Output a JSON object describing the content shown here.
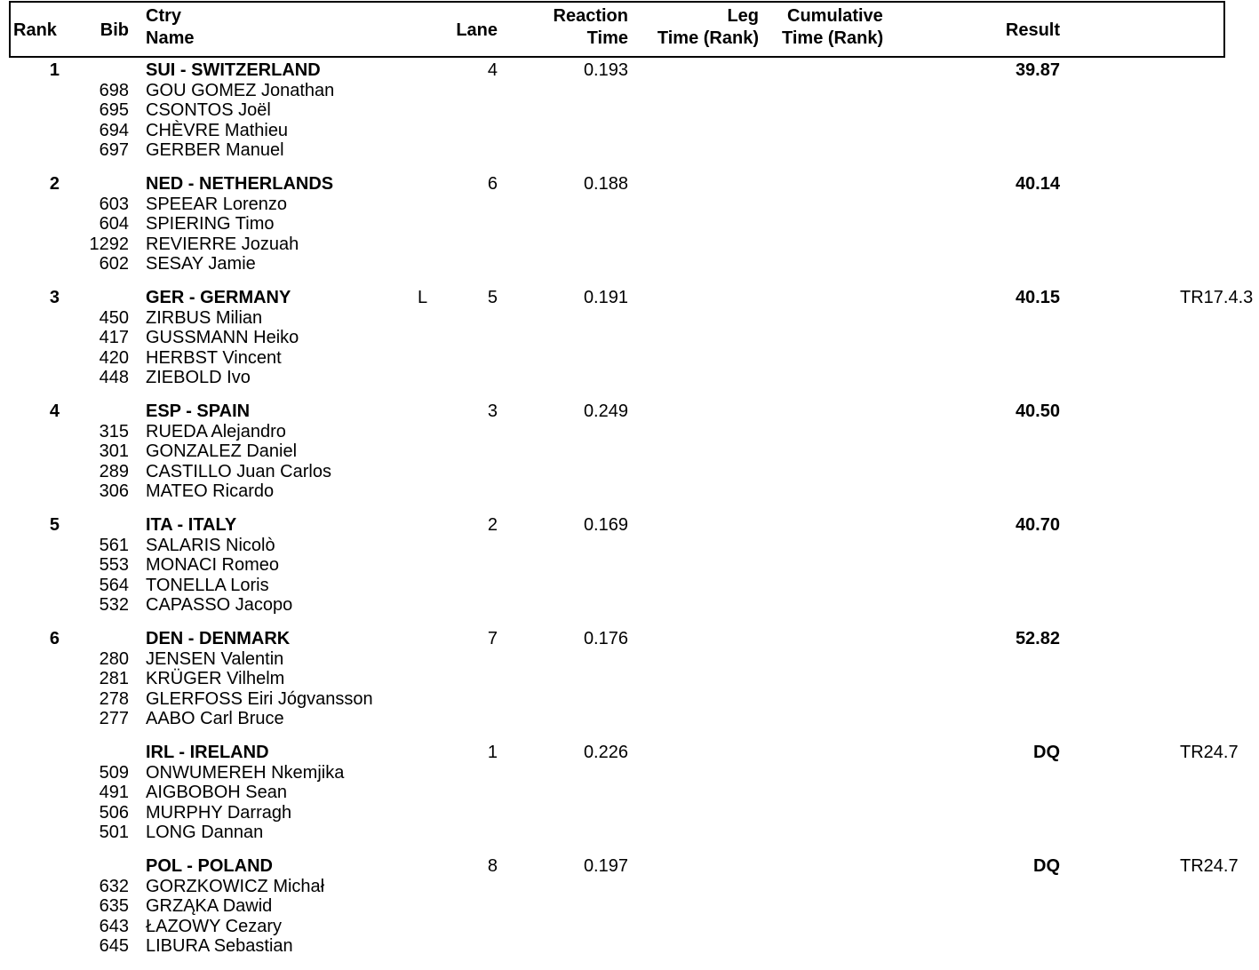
{
  "header": {
    "rank": "Rank",
    "bib": "Bib",
    "ctry": "Ctry",
    "name": "Name",
    "lane": "Lane",
    "reaction_1": "Reaction",
    "reaction_2": "Time",
    "leg_1": "Leg",
    "leg_2": "Time (Rank)",
    "cum_1": "Cumulative",
    "cum_2": "Time (Rank)",
    "result": "Result"
  },
  "teams": [
    {
      "rank": "1",
      "country": "SUI - SWITZERLAND",
      "flag": "",
      "lane": "4",
      "reaction": "0.193",
      "result": "39.87",
      "remark": "",
      "athletes": [
        {
          "bib": "698",
          "name": "GOU GOMEZ Jonathan"
        },
        {
          "bib": "695",
          "name": "CSONTOS Joël"
        },
        {
          "bib": "694",
          "name": "CHÈVRE Mathieu"
        },
        {
          "bib": "697",
          "name": "GERBER Manuel"
        }
      ]
    },
    {
      "rank": "2",
      "country": "NED - NETHERLANDS",
      "flag": "",
      "lane": "6",
      "reaction": "0.188",
      "result": "40.14",
      "remark": "",
      "athletes": [
        {
          "bib": "603",
          "name": "SPEEAR Lorenzo"
        },
        {
          "bib": "604",
          "name": "SPIERING Timo"
        },
        {
          "bib": "1292",
          "name": "REVIERRE Jozuah"
        },
        {
          "bib": "602",
          "name": "SESAY Jamie"
        }
      ]
    },
    {
      "rank": "3",
      "country": "GER - GERMANY",
      "flag": "L",
      "lane": "5",
      "reaction": "0.191",
      "result": "40.15",
      "remark": "TR17.4.3",
      "athletes": [
        {
          "bib": "450",
          "name": "ZIRBUS Milian"
        },
        {
          "bib": "417",
          "name": "GUSSMANN Heiko"
        },
        {
          "bib": "420",
          "name": "HERBST Vincent"
        },
        {
          "bib": "448",
          "name": "ZIEBOLD Ivo"
        }
      ]
    },
    {
      "rank": "4",
      "country": "ESP - SPAIN",
      "flag": "",
      "lane": "3",
      "reaction": "0.249",
      "result": "40.50",
      "remark": "",
      "athletes": [
        {
          "bib": "315",
          "name": "RUEDA Alejandro"
        },
        {
          "bib": "301",
          "name": "GONZALEZ Daniel"
        },
        {
          "bib": "289",
          "name": "CASTILLO Juan Carlos"
        },
        {
          "bib": "306",
          "name": "MATEO Ricardo"
        }
      ]
    },
    {
      "rank": "5",
      "country": "ITA - ITALY",
      "flag": "",
      "lane": "2",
      "reaction": "0.169",
      "result": "40.70",
      "remark": "",
      "athletes": [
        {
          "bib": "561",
          "name": "SALARIS Nicolò"
        },
        {
          "bib": "553",
          "name": "MONACI Romeo"
        },
        {
          "bib": "564",
          "name": "TONELLA Loris"
        },
        {
          "bib": "532",
          "name": "CAPASSO Jacopo"
        }
      ]
    },
    {
      "rank": "6",
      "country": "DEN - DENMARK",
      "flag": "",
      "lane": "7",
      "reaction": "0.176",
      "result": "52.82",
      "remark": "",
      "athletes": [
        {
          "bib": "280",
          "name": "JENSEN Valentin"
        },
        {
          "bib": "281",
          "name": "KRÜGER Vilhelm"
        },
        {
          "bib": "278",
          "name": "GLERFOSS Eiri Jógvansson"
        },
        {
          "bib": "277",
          "name": "AABO Carl Bruce"
        }
      ]
    },
    {
      "rank": "",
      "country": "IRL - IRELAND",
      "flag": "",
      "lane": "1",
      "reaction": "0.226",
      "result": "DQ",
      "remark": "TR24.7",
      "athletes": [
        {
          "bib": "509",
          "name": "ONWUMEREH Nkemjika"
        },
        {
          "bib": "491",
          "name": "AIGBOBOH Sean"
        },
        {
          "bib": "506",
          "name": "MURPHY Darragh"
        },
        {
          "bib": "501",
          "name": "LONG Dannan"
        }
      ]
    },
    {
      "rank": "",
      "country": "POL - POLAND",
      "flag": "",
      "lane": "8",
      "reaction": "0.197",
      "result": "DQ",
      "remark": "TR24.7",
      "athletes": [
        {
          "bib": "632",
          "name": "GORZKOWICZ Michał"
        },
        {
          "bib": "635",
          "name": "GRZĄKA Dawid"
        },
        {
          "bib": "643",
          "name": "ŁAZOWY Cezary"
        },
        {
          "bib": "645",
          "name": "LIBURA Sebastian"
        }
      ]
    }
  ]
}
